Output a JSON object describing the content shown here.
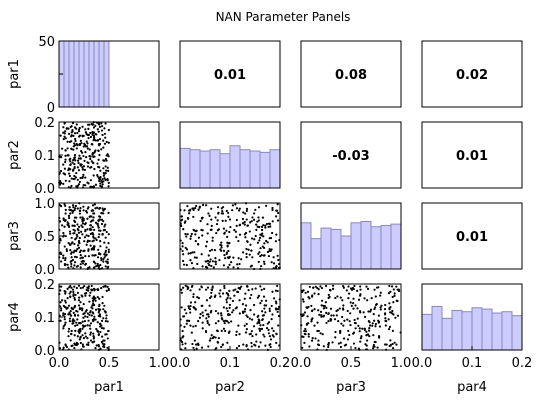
{
  "chart_data": {
    "type": "scatter",
    "title": "NAN Parameter Panels",
    "parameters": [
      {
        "name": "par1",
        "range": [
          0.0,
          1.0
        ],
        "ticks": [
          "0.0",
          "0.5",
          "1.0"
        ],
        "sample_range": [
          0.0,
          0.5
        ]
      },
      {
        "name": "par2",
        "range": [
          0.0,
          0.2
        ],
        "ticks": [
          "0.0",
          "0.1",
          "0.2"
        ],
        "sample_range": [
          0.0,
          0.2
        ]
      },
      {
        "name": "par3",
        "range": [
          0.0,
          1.0
        ],
        "ticks": [
          "0.0",
          "0.5",
          "1.0"
        ],
        "sample_range": [
          0.0,
          1.0
        ]
      },
      {
        "name": "par4",
        "range": [
          0.0,
          0.2
        ],
        "ticks": [
          "0.0",
          "0.1",
          "0.2"
        ],
        "sample_range": [
          0.0,
          0.2
        ]
      }
    ],
    "hist_ylim": [
      0,
      50
    ],
    "hist_yticks": [
      "0",
      "25",
      "50"
    ],
    "histograms": [
      {
        "param": "par1",
        "bin_edges": [
          0.0,
          0.05,
          0.1,
          0.15,
          0.2,
          0.25,
          0.3,
          0.35,
          0.4,
          0.45,
          0.5
        ],
        "values": [
          50,
          50,
          50,
          50,
          50,
          50,
          50,
          50,
          50,
          50
        ]
      },
      {
        "param": "par2",
        "bin_edges": [
          0.0,
          0.02,
          0.04,
          0.06,
          0.08,
          0.1,
          0.12,
          0.14,
          0.16,
          0.18,
          0.2
        ],
        "values": [
          30,
          29,
          28,
          29,
          26,
          32,
          29,
          28,
          27,
          29
        ]
      },
      {
        "param": "par3",
        "bin_edges": [
          0.0,
          0.1,
          0.2,
          0.3,
          0.4,
          0.5,
          0.6,
          0.7,
          0.8,
          0.9,
          1.0
        ],
        "values": [
          35,
          23,
          31,
          30,
          25,
          35,
          36,
          32,
          33,
          34
        ]
      },
      {
        "param": "par4",
        "bin_edges": [
          0.0,
          0.02,
          0.04,
          0.06,
          0.08,
          0.1,
          0.12,
          0.14,
          0.16,
          0.18,
          0.2
        ],
        "values": [
          27,
          33,
          24,
          30,
          29,
          32,
          31,
          28,
          29,
          26
        ]
      }
    ],
    "correlations": [
      {
        "row": 0,
        "col": 1,
        "text": "0.01"
      },
      {
        "row": 0,
        "col": 2,
        "text": "0.08"
      },
      {
        "row": 0,
        "col": 3,
        "text": "0.02"
      },
      {
        "row": 1,
        "col": 2,
        "text": "-0.03"
      },
      {
        "row": 1,
        "col": 3,
        "text": "0.01"
      },
      {
        "row": 2,
        "col": 3,
        "text": "0.01"
      }
    ],
    "n_samples": 300,
    "hist_color": "#ccccff",
    "hist_edge": "#8888bb",
    "point_color": "#000000"
  }
}
